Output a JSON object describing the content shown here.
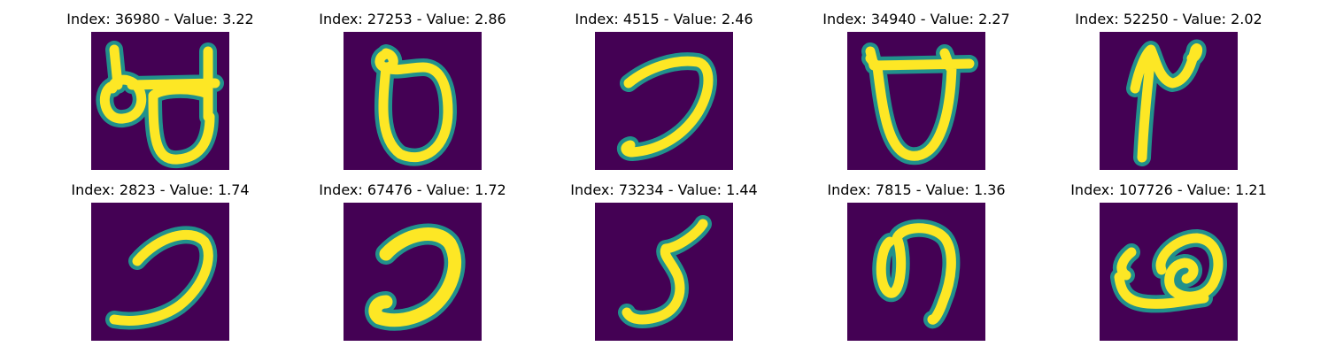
{
  "figure": {
    "background_color": "#440154",
    "stroke_edge_color": "#21918c",
    "stroke_core_color": "#fde725",
    "panels": [
      {
        "title": "Index: 36980 - Value: 3.22",
        "glyph": "kannada-ba-like-double-loop"
      },
      {
        "title": "Index: 27253 - Value: 2.86",
        "glyph": "kannada-da-like-loop"
      },
      {
        "title": "Index: 4515 - Value: 2.46",
        "glyph": "hook-curve"
      },
      {
        "title": "Index: 34940 - Value: 2.27",
        "glyph": "cup-with-top-bar"
      },
      {
        "title": "Index: 52250 - Value: 2.02",
        "glyph": "squiggle-vertical"
      },
      {
        "title": "Index: 2823 - Value: 1.74",
        "glyph": "hook-curve"
      },
      {
        "title": "Index: 67476 - Value: 1.72",
        "glyph": "hook-curve-thick"
      },
      {
        "title": "Index: 73234 - Value: 1.44",
        "glyph": "kannada-digit-like-3"
      },
      {
        "title": "Index: 7815 - Value: 1.36",
        "glyph": "loop-with-tail"
      },
      {
        "title": "Index: 107726 - Value: 1.21",
        "glyph": "double-loop-low"
      }
    ]
  }
}
